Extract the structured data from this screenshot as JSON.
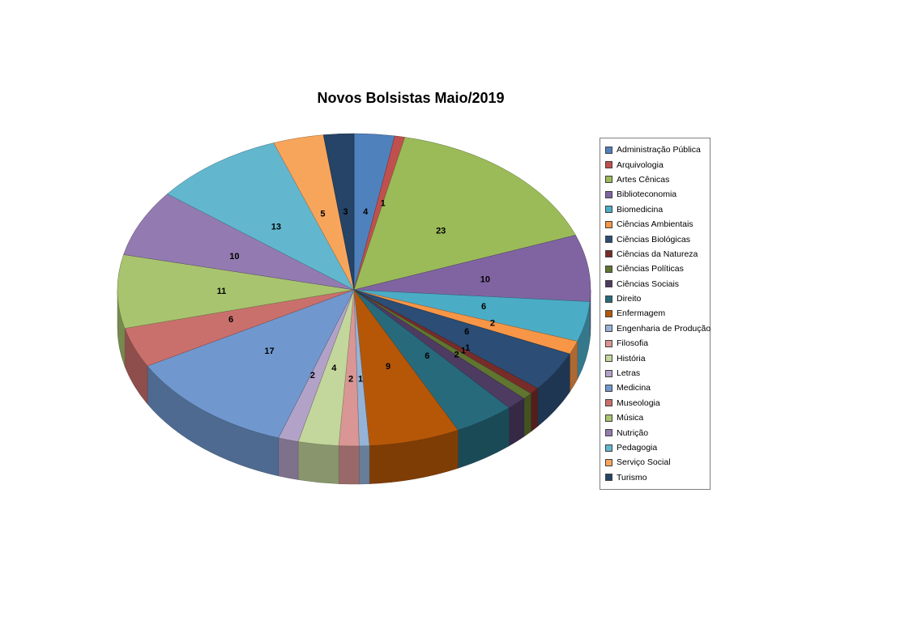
{
  "chart_data": {
    "type": "pie",
    "style": "3d",
    "title": "Novos Bolsistas Maio/2019",
    "legend_position": "right",
    "start_angle_deg": 0,
    "direction": "clockwise",
    "data_labels": "value",
    "categories": [
      "Administração Pública",
      "Arquivologia",
      "Artes Cênicas",
      "Biblioteconomia",
      "Biomedicina",
      "Ciências Ambientais",
      "Ciências Biológicas",
      "Ciências da Natureza",
      "Ciências Políticas",
      "Ciências Sociais",
      "Direito",
      "Enfermagem",
      "Engenharia de Produção",
      "Filosofia",
      "História",
      "Letras",
      "Medicina",
      "Museologia",
      "Música",
      "Nutrição",
      "Pedagogia",
      "Serviço Social",
      "Turismo"
    ],
    "values": [
      4,
      1,
      23,
      10,
      6,
      2,
      6,
      1,
      1,
      2,
      6,
      9,
      1,
      2,
      4,
      2,
      17,
      6,
      11,
      10,
      13,
      5,
      3
    ],
    "colors": [
      "#4F81BD",
      "#C0504D",
      "#9BBB59",
      "#8064A2",
      "#4BACC6",
      "#F79646",
      "#2C4D75",
      "#772C2A",
      "#5F7530",
      "#4D3B62",
      "#276A7C",
      "#B65708",
      "#95B3D7",
      "#D99694",
      "#C3D69B",
      "#B3A2C7",
      "#7098CE",
      "#C9706D",
      "#A9C46F",
      "#937BB1",
      "#62B7CE",
      "#F8A55C",
      "#254467"
    ]
  }
}
